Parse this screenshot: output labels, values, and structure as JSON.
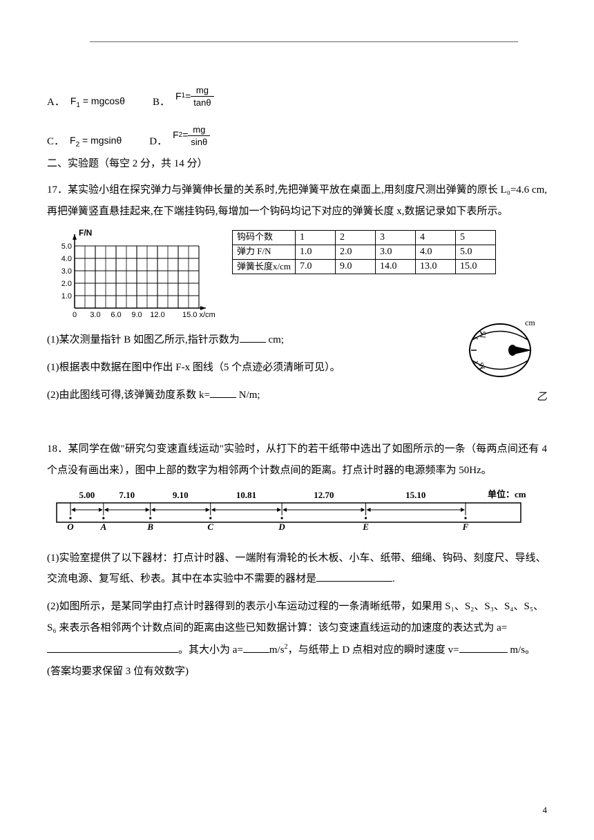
{
  "options1": {
    "a_label": "A．",
    "a_formula_left": "F",
    "a_formula_sub": "1",
    "a_formula_right": " = mgcosθ",
    "b_label": "B．",
    "b_formula_left": "F",
    "b_formula_sub": "1",
    "b_eq": " = ",
    "b_num": "mg",
    "b_den": "tanθ"
  },
  "options2": {
    "c_label": "C．",
    "c_formula_left": "F",
    "c_formula_sub": "2",
    "c_formula_right": " = mgsinθ",
    "d_label": "D．",
    "d_formula_left": "F",
    "d_formula_sub": "2",
    "d_eq": " = ",
    "d_num": "mg",
    "d_den": "sinθ"
  },
  "section2": "二、实验题（每空 2 分，共 14 分）",
  "q17": {
    "num": "17．",
    "text": "某实验小组在探究弹力与弹簧伸长量的关系时,先把弹簧平放在桌面上,用刻度尺测出弹簧的原长 L₀=4.6 cm,再把弹簧竖直悬挂起来,在下端挂钩码,每增加一个钩码均记下对应的弹簧长度 x,数据记录如下表所示。"
  },
  "chart": {
    "y_label": "F/N",
    "x_label": "15.0 x/cm",
    "x_ticks": [
      "0",
      "3.0",
      "6.0",
      "9.0",
      "12.0"
    ],
    "y_ticks": [
      "1.0",
      "2.0",
      "3.0",
      "4.0",
      "5.0"
    ],
    "grid_color": "#000000",
    "line_width": 1
  },
  "table": {
    "r1": [
      "钩码个数",
      "1",
      "2",
      "3",
      "4",
      "5"
    ],
    "r2": [
      "弹力 F/N",
      "1.0",
      "2.0",
      "3.0",
      "4.0",
      "5.0"
    ],
    "r3": [
      "弹簧长度x/cm",
      "7.0",
      "9.0",
      "14.0",
      "13.0",
      "15.0"
    ]
  },
  "dial": {
    "unit": "cm",
    "tick_a": "15",
    "tick_b": "16",
    "label": "乙"
  },
  "q17_parts": {
    "p1a": "(1)某次测量指针 B 如图乙所示,指针示数为",
    "p1b": " cm;",
    "p2": "(1)根据表中数据在图中作出 F-x 图线（5 个点迹必须清晰可见）。",
    "p3a": "(2)由此图线可得,该弹簧劲度系数 k=",
    "p3b": " N/m;"
  },
  "q18": {
    "num": "18．",
    "text": "某同学在做\"研究匀变速直线运动\"实验时，从打下的若干纸带中选出了如图所示的一条（每两点间还有 4 个点没有画出来），图中上部的数字为相邻两个计数点间的距离。打点计时器的电源频率为 50Hz。"
  },
  "tape": {
    "unit_label": "单位：cm",
    "segs": [
      "5.00",
      "7.10",
      "9.10",
      "10.81",
      "12.70",
      "15.10"
    ],
    "points": [
      "O",
      "A",
      "B",
      "C",
      "D",
      "E",
      "F"
    ]
  },
  "q18_parts": {
    "p1a": "(1)实验室提供了以下器材：打点计时器、一端附有滑轮的长木板、小车、纸带、细绳、钩码、刻度尺、导线、交流电源、复写纸、秒表。其中在本实验中不需要的器材是",
    "p1b": ".",
    "p2a": "(2)如图所示，是某同学由打点计时器得到的表示小车运动过程的一条清晰纸带，如果用 S₁、S₂、S₃、S₄、S₅、S₆ 来表示各相邻两个计数点间的距离由这些已知数据计算：该匀变速直线运动的加速度的表达式为 a=",
    "p2b": "。其大小为 a=",
    "p2c": "m/s",
    "p2d": "，与纸带上 D 点相对应的瞬时速度 v=",
    "p2e": " m/s。(答案均要求保留 3 位有效数字)"
  },
  "page_num": "4"
}
